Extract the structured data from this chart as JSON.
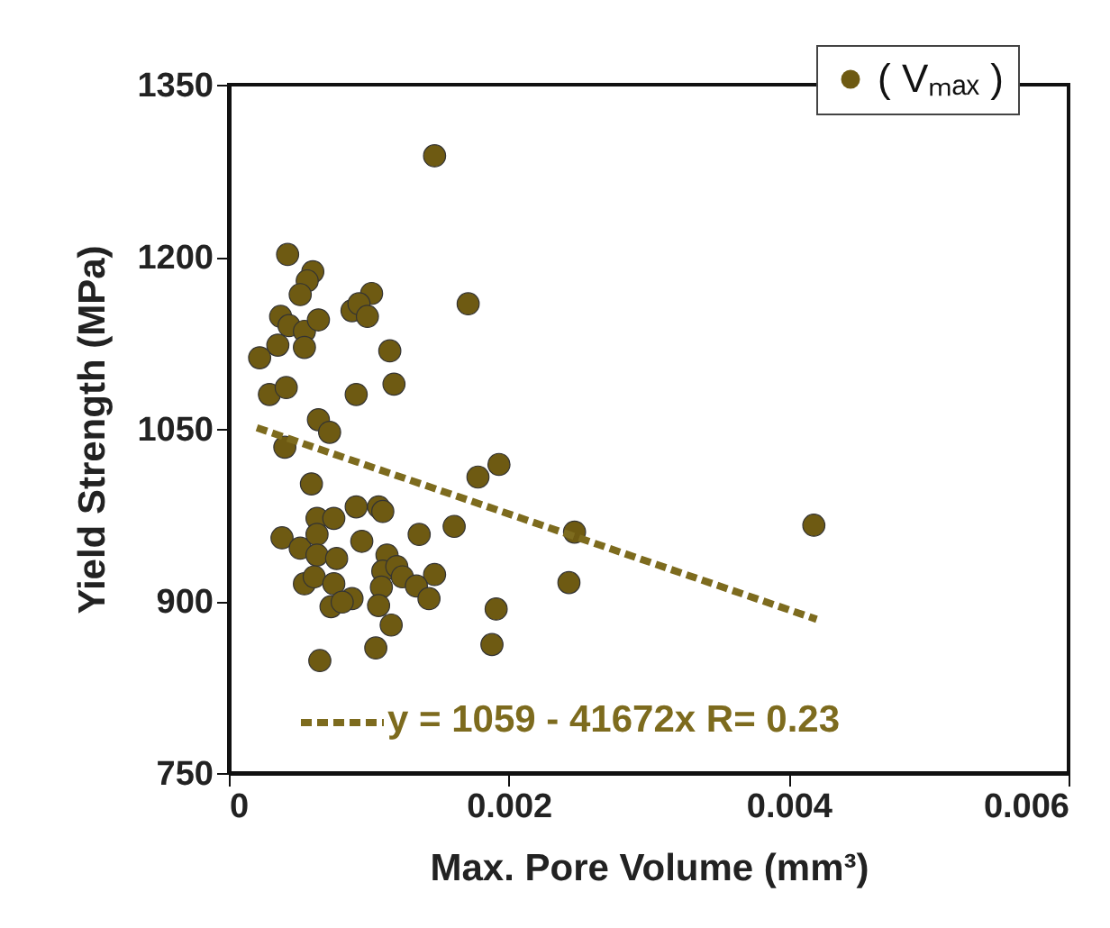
{
  "chart_data": {
    "type": "scatter",
    "xlabel": "Max. Pore Volume (mm³)",
    "ylabel": "Yield Strength (MPa)",
    "xlim": [
      0,
      0.006
    ],
    "xticks": [
      0,
      0.002,
      0.004,
      0.006
    ],
    "ylim": [
      750,
      1350
    ],
    "yticks": [
      750,
      900,
      1050,
      1200,
      1350
    ],
    "grid": false,
    "legend": "top right",
    "marker": "circle",
    "series": [
      {
        "name": "( Vₘₐₓ )",
        "color": "#6e5a12",
        "x": [
          0.00147,
          0.00042,
          0.0006,
          0.00056,
          0.00051,
          0.00102,
          0.00171,
          0.00088,
          0.00093,
          0.00099,
          0.00037,
          0.00043,
          0.00054,
          0.00064,
          0.00035,
          0.00054,
          0.00022,
          0.00115,
          0.00029,
          0.00041,
          0.00091,
          0.00118,
          0.00064,
          0.00072,
          0.0004,
          0.00059,
          0.00091,
          0.00107,
          0.0011,
          0.00063,
          0.00075,
          0.00038,
          0.00051,
          0.00063,
          0.00063,
          0.00095,
          0.00077,
          0.00113,
          0.0011,
          0.0012,
          0.00124,
          0.00136,
          0.00161,
          0.00147,
          0.00134,
          0.00143,
          0.00109,
          0.00054,
          0.00061,
          0.00075,
          0.00088,
          0.00073,
          0.00081,
          0.00107,
          0.00116,
          0.00105,
          0.00065,
          0.00178,
          0.00193,
          0.00191,
          0.00188,
          0.00247,
          0.00243,
          0.00418
        ],
        "values": [
          1288,
          1202,
          1187,
          1179,
          1167,
          1168,
          1159,
          1153,
          1159,
          1148,
          1148,
          1140,
          1135,
          1145,
          1123,
          1121,
          1112,
          1118,
          1080,
          1086,
          1080,
          1089,
          1058,
          1047,
          1034,
          1002,
          982,
          982,
          978,
          972,
          972,
          955,
          946,
          958,
          940,
          952,
          937,
          940,
          926,
          930,
          921,
          958,
          965,
          923,
          913,
          902,
          912,
          915,
          921,
          915,
          902,
          895,
          899,
          896,
          879,
          859,
          848,
          1008,
          1019,
          893,
          862,
          960,
          916,
          966
        ]
      },
      {
        "name": "y = 1059 - 41672x   R= 0.23",
        "color": "#7d6b1e",
        "type": "line",
        "line_style": "dashed",
        "marker": "none",
        "x": [
          0.0002,
          0.0042
        ],
        "values": [
          1051,
          884
        ]
      }
    ]
  }
}
